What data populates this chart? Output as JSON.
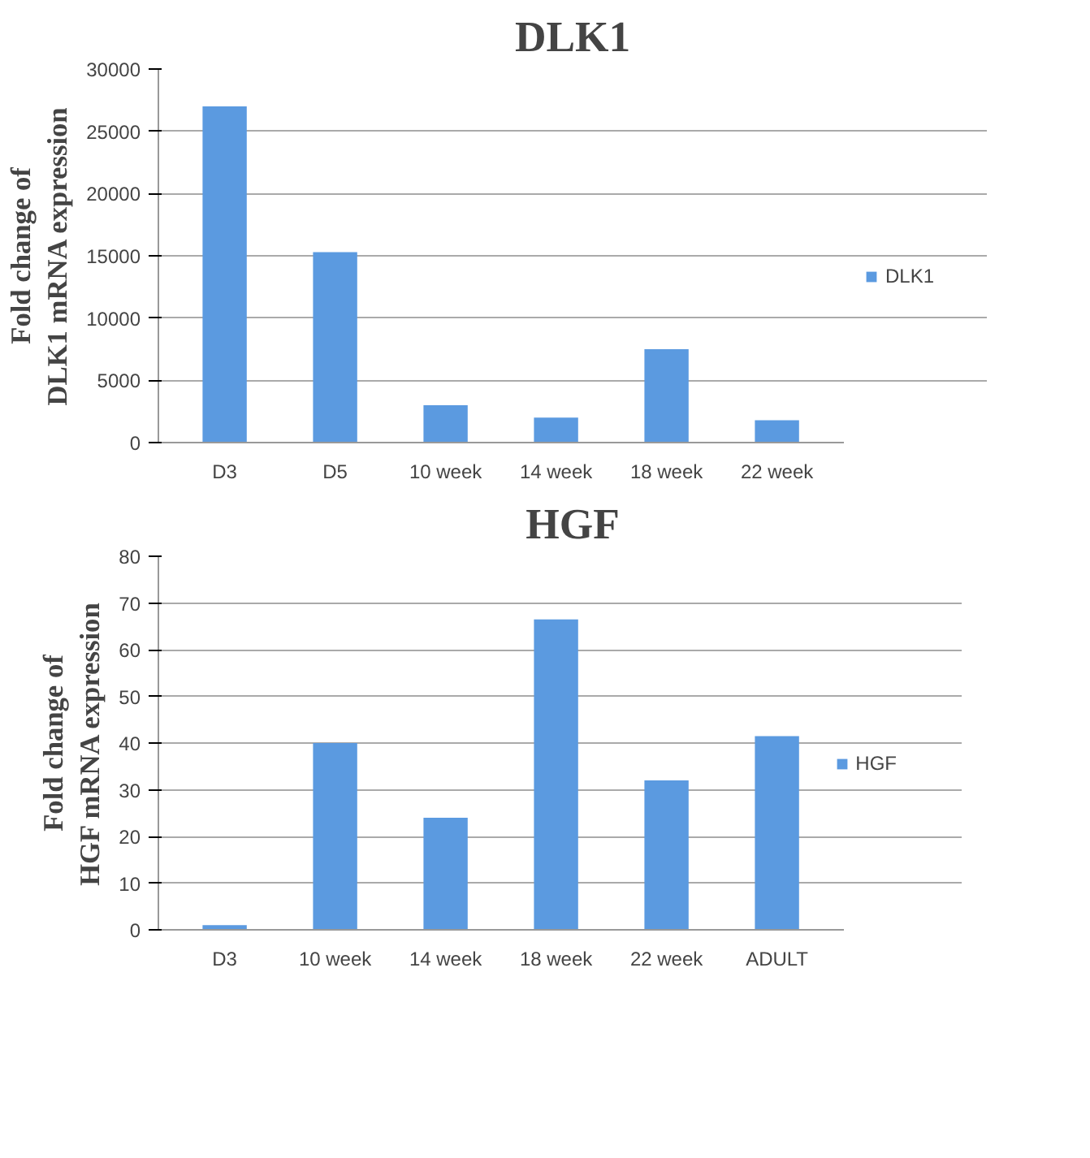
{
  "chart_data": [
    {
      "type": "bar",
      "title": "DLK1",
      "ylabel": "Fold change of DLK1 mRNA expression",
      "categories": [
        "D3",
        "D5",
        "10 week",
        "14 week",
        "18 week",
        "22 week"
      ],
      "series": [
        {
          "name": "DLK1",
          "color": "#5b9ae0",
          "values": [
            27000,
            15300,
            3000,
            2000,
            7500,
            1800
          ]
        }
      ],
      "ylim": [
        0,
        30000
      ],
      "yticks": [
        0,
        5000,
        10000,
        15000,
        20000,
        25000,
        30000
      ],
      "grid": "y",
      "legend": "right"
    },
    {
      "type": "bar",
      "title": "HGF",
      "ylabel": "Fold change of HGF mRNA expression",
      "categories": [
        "D3",
        "10 week",
        "14 week",
        "18 week",
        "22 week",
        "ADULT"
      ],
      "series": [
        {
          "name": "HGF",
          "color": "#5b9ae0",
          "values": [
            1,
            40,
            24,
            66.5,
            32,
            41.5
          ]
        }
      ],
      "ylim": [
        0,
        80
      ],
      "yticks": [
        0,
        10,
        20,
        30,
        40,
        50,
        60,
        70,
        80
      ],
      "grid": "y",
      "legend": "right"
    }
  ]
}
